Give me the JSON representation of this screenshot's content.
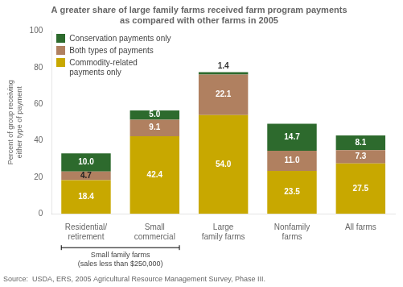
{
  "chart_data": {
    "type": "bar",
    "title": "A greater share of large family farms received farm program payments\nas compared with other farms in 2005",
    "ylabel": "Percent of group receiving either type of payment",
    "source": "Source:  USDA, ERS, 2005 Agricultural Resource Management Survey, Phase III.",
    "categories": [
      "Residential/\nretirement",
      "Small\ncommercial",
      "Large\nfamily farms",
      "Nonfamily\nfarms",
      "All farms"
    ],
    "series": [
      {
        "name": "Commodity-related\npayments only",
        "color": "#C8A800",
        "values": [
          18.4,
          42.4,
          54.0,
          23.5,
          27.5
        ],
        "value_labels": [
          "18.4",
          "42.4",
          "54.0",
          "23.5",
          "27.5"
        ]
      },
      {
        "name": "Both types of payments",
        "color": "#B08060",
        "values": [
          4.7,
          9.1,
          22.1,
          11.0,
          7.3
        ],
        "value_labels": [
          "4.7",
          "9.1",
          "22.1",
          "11.0",
          "7.3"
        ]
      },
      {
        "name": "Conservation payments only",
        "color": "#2D6A2D",
        "values": [
          10.0,
          5.0,
          1.4,
          14.7,
          8.1
        ],
        "value_labels": [
          "10.0",
          "5.0",
          "1.4",
          "14.7",
          "8.1"
        ]
      }
    ],
    "stacked": true,
    "data_labels": true,
    "ylim": [
      0,
      100
    ],
    "yticks": [
      0,
      20,
      40,
      60,
      80,
      100
    ],
    "grid": false,
    "legend": "upper left",
    "annotations": [
      {
        "text": "Small family farms\n(sales less than $250,000)",
        "categories": [
          "Residential/\nretirement",
          "Small\ncommercial"
        ]
      }
    ]
  }
}
